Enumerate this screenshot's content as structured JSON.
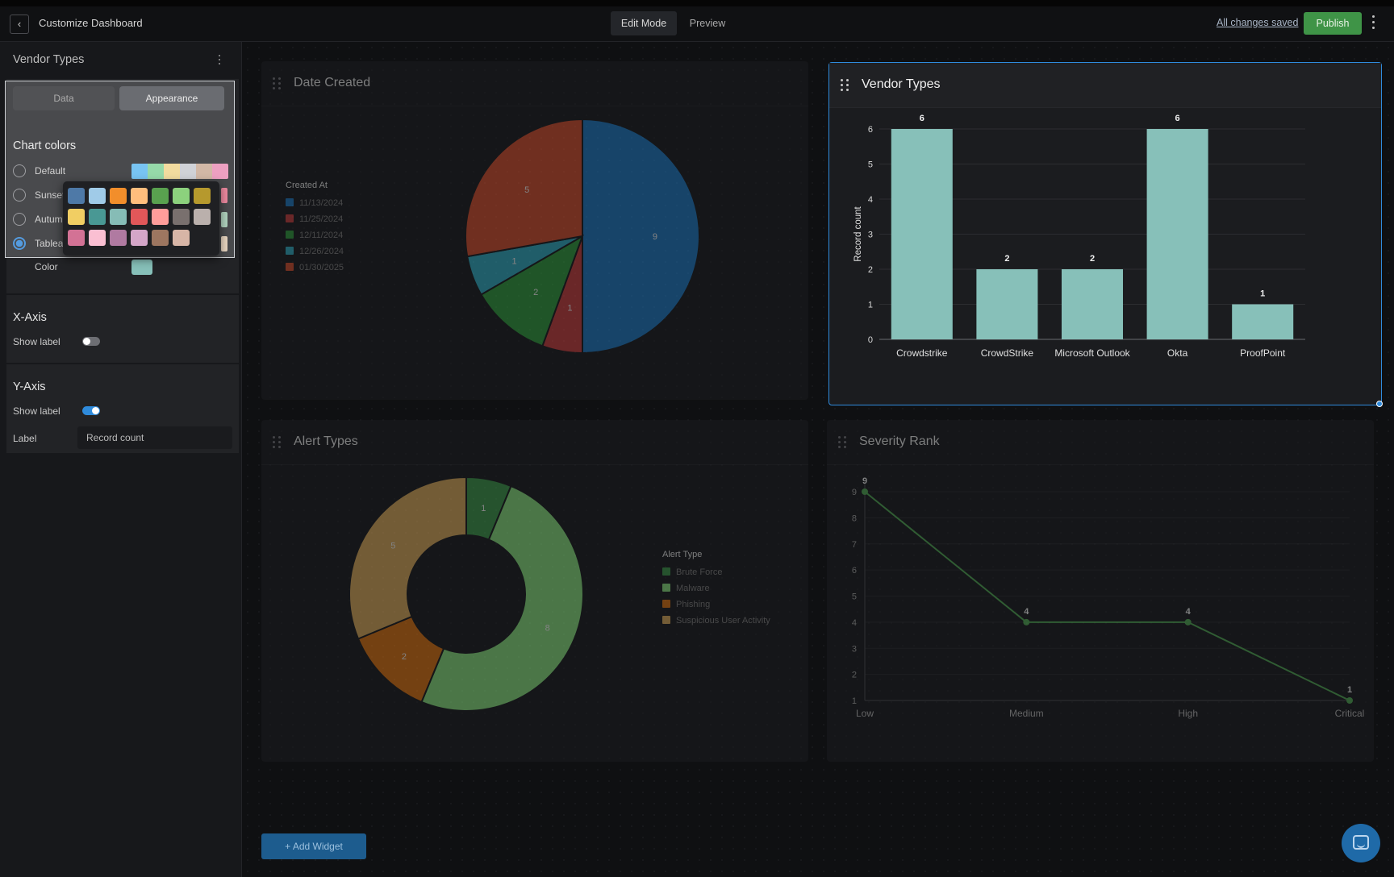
{
  "topbar": {
    "back_icon": "chevron-left-icon",
    "title": "Customize Dashboard",
    "tabs": [
      "Edit Mode",
      "Preview"
    ],
    "active_tab": "Edit Mode",
    "saved_status": "All changes saved",
    "publish_label": "Publish"
  },
  "panel": {
    "title": "Vendor Types",
    "segments": [
      "Data",
      "Appearance"
    ],
    "active_segment": "Appearance",
    "chart_colors_title": "Chart colors",
    "schemes": [
      {
        "label": "Default",
        "selected": false,
        "colors": [
          "#5bb7f0",
          "#7fd196",
          "#f0d48a",
          "#c6c9cf",
          "#c9a993",
          "#ea8cb4"
        ]
      },
      {
        "label": "Sunset",
        "selected": false,
        "colors": [
          "#e8708a"
        ]
      },
      {
        "label": "Autumn",
        "selected": false,
        "colors": [
          "#9fc9b0"
        ]
      },
      {
        "label": "Tableau",
        "selected": true,
        "colors": [
          "#e3ccb3"
        ]
      }
    ],
    "color_label": "Color",
    "color_value": "#87c0b9",
    "palette": [
      [
        "#4e79a7",
        "#a0cbe8",
        "#f28e2b",
        "#ffbe7d",
        "#59a14f",
        "#8cd17d",
        "#b6992d"
      ],
      [
        "#f1ce63",
        "#499894",
        "#86bcb6",
        "#e15759",
        "#ff9d9a",
        "#79706e",
        "#bab0ac"
      ],
      [
        "#d37295",
        "#fabfd2",
        "#b07aa1",
        "#d4a6c8",
        "#9d7660",
        "#d7b5a6"
      ]
    ],
    "x_axis": {
      "title": "X-Axis",
      "show_label_text": "Show label",
      "show_label": false
    },
    "y_axis": {
      "title": "Y-Axis",
      "show_label_text": "Show label",
      "show_label": true,
      "label_text": "Label",
      "label_value": "Record count"
    }
  },
  "widgets": {
    "date_created": {
      "title": "Date Created",
      "chart_data": {
        "type": "pie",
        "legend_title": "Created At",
        "categories": [
          "11/13/2024",
          "11/25/2024",
          "12/11/2024",
          "12/26/2024",
          "01/30/2025"
        ],
        "values": [
          9,
          1,
          2,
          1,
          5
        ],
        "colors": [
          "#1f6fb0",
          "#b53a3a",
          "#2f8f3a",
          "#2f9db0",
          "#c04a2c"
        ]
      }
    },
    "vendor_types": {
      "title": "Vendor Types",
      "chart_data": {
        "type": "bar",
        "categories": [
          "Crowdstrike",
          "CrowdStrike",
          "Microsoft Outlook",
          "Okta",
          "ProofPoint"
        ],
        "values": [
          6,
          2,
          2,
          6,
          1
        ],
        "ylabel": "Record count",
        "ylim": [
          0,
          6
        ],
        "yticks": [
          0,
          1,
          2,
          3,
          4,
          5,
          6
        ],
        "color": "#87c0b9"
      }
    },
    "alert_types": {
      "title": "Alert Types",
      "chart_data": {
        "type": "pie",
        "donut": true,
        "legend_title": "Alert Type",
        "categories": [
          "Brute Force",
          "Malware",
          "Phishing",
          "Suspicious User Activity"
        ],
        "values": [
          1,
          8,
          2,
          5
        ],
        "colors": [
          "#3a8a45",
          "#7ccb73",
          "#c86a12",
          "#c59a55"
        ]
      }
    },
    "severity_rank": {
      "title": "Severity Rank",
      "chart_data": {
        "type": "line",
        "categories": [
          "Low",
          "Medium",
          "High",
          "Critical"
        ],
        "values": [
          9,
          4,
          4,
          1
        ],
        "ylim": [
          1,
          9
        ],
        "yticks": [
          1,
          2,
          3,
          4,
          5,
          6,
          7,
          8,
          9
        ],
        "color": "#4c9a4f"
      }
    }
  },
  "add_widget_label": "+ Add Widget",
  "chat_icon": "chat-icon"
}
